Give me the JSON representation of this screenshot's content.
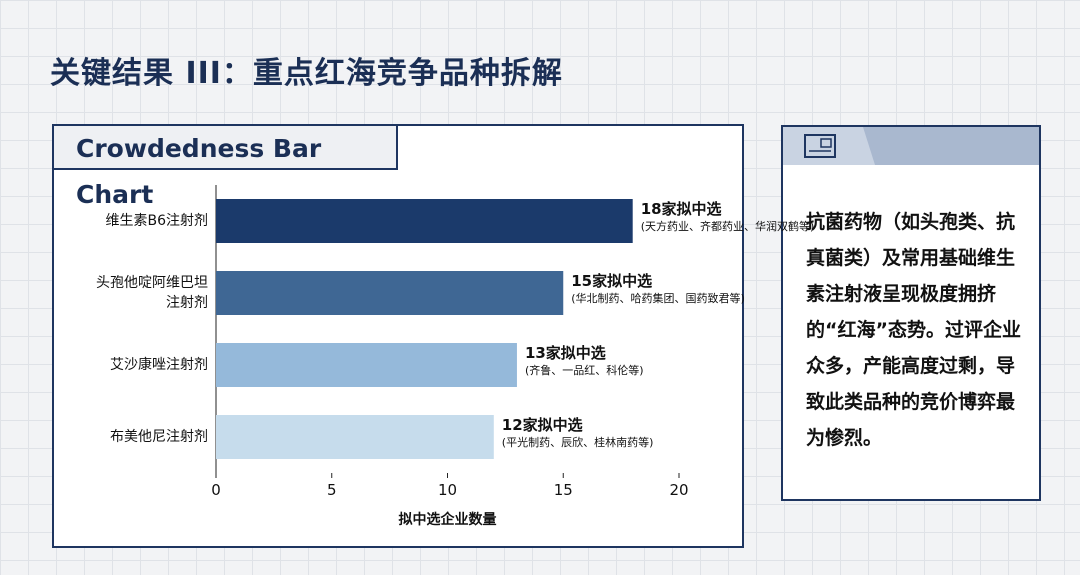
{
  "page_title": "关键结果 III：重点红海竞争品种拆解",
  "chart_data": {
    "type": "barh",
    "title": "Crowdedness Bar Chart",
    "categories": [
      "维生素B6注射剂",
      "头孢他啶阿维巴坦注射剂",
      "艾沙康唑注射剂",
      "布美他尼注射剂"
    ],
    "values": [
      18,
      15,
      13,
      12
    ],
    "value_labels": [
      "18家拟中选",
      "15家拟中选",
      "13家拟中选",
      "12家拟中选"
    ],
    "notes": [
      "(天方药业、齐都药业、华润双鹤等)",
      "(华北制药、哈药集团、国药致君等)",
      "(齐鲁、一品红、科伦等)",
      "(平光制药、辰欣、桂林南药等)"
    ],
    "colors": [
      "#1b3a6b",
      "#3f6794",
      "#95b9da",
      "#c6dcec"
    ],
    "x_label": "拟中选企业数量",
    "xlim": [
      0,
      20
    ],
    "xticks": [
      0,
      5,
      10,
      15,
      20
    ],
    "grid": false
  },
  "panel_text": "抗菌药物（如头孢类、抗真菌类）及常用基础维生素注射液呈现极度拥挤的“红海”态势。过评企业众多，产能高度过剩，导致此类品种的竞价博弈最为惨烈。"
}
